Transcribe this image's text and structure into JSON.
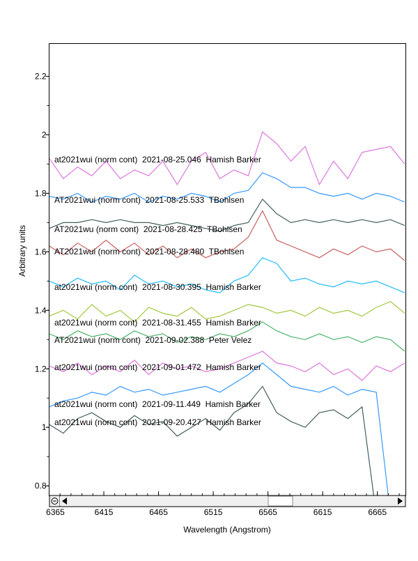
{
  "chart_data": {
    "type": "line",
    "title": "",
    "xlabel": "Wavelength (Angstrom)",
    "ylabel": "Arbitrary units",
    "xlim": [
      6365,
      6691
    ],
    "ylim": [
      0.767,
      2.312
    ],
    "x_ticks": [
      "6365",
      "6415",
      "6465",
      "6515",
      "6565",
      "6615",
      "6665"
    ],
    "y_ticks": [
      "0.8",
      "1",
      "1.2",
      "1.4",
      "1.6",
      "1.8",
      "2",
      "2.2"
    ],
    "grid": false,
    "x": [
      6365,
      6378,
      6391,
      6404,
      6417,
      6430,
      6443,
      6456,
      6469,
      6482,
      6495,
      6508,
      6521,
      6534,
      6547,
      6560,
      6573,
      6586,
      6599,
      6612,
      6625,
      6638,
      6651,
      6664,
      6677,
      6690
    ],
    "series": [
      {
        "name": "at2021wui (norm cont)  2021-08-25.046  Hamish Barker",
        "color": "#dd77dd",
        "values": [
          1.92,
          1.85,
          1.89,
          1.86,
          1.91,
          1.85,
          1.88,
          1.86,
          1.91,
          1.83,
          1.91,
          1.94,
          1.85,
          1.88,
          1.86,
          2.01,
          1.97,
          1.91,
          1.96,
          1.83,
          1.91,
          1.85,
          1.94,
          1.95,
          1.96,
          1.9
        ]
      },
      {
        "name": "AT2021wui (norm cont)  2021-08-25.533  TBohlsen",
        "color": "#3399ff",
        "values": [
          1.79,
          1.78,
          1.8,
          1.77,
          1.79,
          1.78,
          1.8,
          1.77,
          1.79,
          1.78,
          1.8,
          1.79,
          1.77,
          1.8,
          1.81,
          1.87,
          1.85,
          1.82,
          1.82,
          1.8,
          1.79,
          1.8,
          1.78,
          1.8,
          1.79,
          1.77
        ]
      },
      {
        "name": "AT2021wu (norm cont)  2021-08-28.425  TBohlsen",
        "color": "#445e5e",
        "values": [
          1.68,
          1.7,
          1.7,
          1.71,
          1.7,
          1.71,
          1.7,
          1.7,
          1.69,
          1.7,
          1.69,
          1.68,
          1.67,
          1.69,
          1.7,
          1.78,
          1.73,
          1.7,
          1.71,
          1.7,
          1.71,
          1.7,
          1.71,
          1.7,
          1.71,
          1.69
        ]
      },
      {
        "name": "AT2021wui (norm cont)  2021-08-28.480  TBohlsen",
        "color": "#c86060",
        "values": [
          1.62,
          1.59,
          1.63,
          1.6,
          1.64,
          1.6,
          1.63,
          1.59,
          1.62,
          1.58,
          1.61,
          1.58,
          1.6,
          1.61,
          1.65,
          1.74,
          1.64,
          1.62,
          1.6,
          1.58,
          1.61,
          1.59,
          1.62,
          1.6,
          1.61,
          1.57
        ]
      },
      {
        "name": "at2021wui (norm cont)  2021-08-30.395  Hamish Barker",
        "color": "#22bbff",
        "values": [
          1.5,
          1.48,
          1.51,
          1.49,
          1.5,
          1.47,
          1.52,
          1.49,
          1.5,
          1.48,
          1.49,
          1.47,
          1.46,
          1.5,
          1.52,
          1.58,
          1.56,
          1.5,
          1.51,
          1.49,
          1.48,
          1.5,
          1.49,
          1.5,
          1.48,
          1.46
        ]
      },
      {
        "name": "at2021wui (norm cont)  2021-08-31.455  Hamish Barker",
        "color": "#a0c83c",
        "values": [
          1.38,
          1.4,
          1.37,
          1.42,
          1.38,
          1.4,
          1.36,
          1.41,
          1.39,
          1.38,
          1.41,
          1.37,
          1.38,
          1.4,
          1.42,
          1.41,
          1.39,
          1.4,
          1.38,
          1.41,
          1.39,
          1.4,
          1.38,
          1.41,
          1.43,
          1.39
        ]
      },
      {
        "name": "AT2021wui (norm cont)  2021-09-02.388  Peter Velez",
        "color": "#4cb46c",
        "values": [
          1.32,
          1.3,
          1.33,
          1.31,
          1.32,
          1.3,
          1.33,
          1.31,
          1.32,
          1.29,
          1.31,
          1.3,
          1.32,
          1.31,
          1.33,
          1.36,
          1.33,
          1.31,
          1.3,
          1.32,
          1.3,
          1.31,
          1.29,
          1.31,
          1.3,
          1.26
        ]
      },
      {
        "name": "at2021wui (norm cont)  2021-09-01.472  Hamish Barker",
        "color": "#dd77dd",
        "values": [
          1.21,
          1.19,
          1.22,
          1.18,
          1.21,
          1.19,
          1.23,
          1.18,
          1.22,
          1.2,
          1.21,
          1.19,
          1.2,
          1.22,
          1.24,
          1.26,
          1.22,
          1.21,
          1.19,
          1.22,
          1.18,
          1.2,
          1.16,
          1.21,
          1.19,
          1.22
        ]
      },
      {
        "name": "at2021wui (norm cont)  2021-09-11.449  Hamish Barker",
        "color": "#3399ff",
        "values": [
          1.07,
          1.09,
          1.1,
          1.12,
          1.11,
          1.14,
          1.12,
          1.13,
          1.11,
          1.12,
          1.13,
          1.14,
          1.12,
          1.15,
          1.18,
          1.22,
          1.18,
          1.14,
          1.13,
          1.12,
          1.14,
          1.11,
          1.13,
          1.12,
          0.7,
          null
        ]
      },
      {
        "name": "at2021wui (norm cont)  2021-09-20.427  Hamish Barker",
        "color": "#445e5e",
        "values": [
          1.01,
          0.98,
          1.03,
          1.05,
          1.02,
          1.0,
          1.04,
          1.01,
          1.02,
          0.97,
          1.0,
          1.03,
          0.99,
          1.05,
          1.08,
          1.14,
          1.05,
          1.02,
          1.0,
          1.05,
          1.06,
          1.03,
          1.07,
          0.7,
          null,
          null
        ]
      }
    ]
  },
  "scrollbar": {
    "zoom_icon": "zoom-out-icon",
    "left_icon": "arrow-left-icon",
    "right_icon": "arrow-right-icon"
  }
}
